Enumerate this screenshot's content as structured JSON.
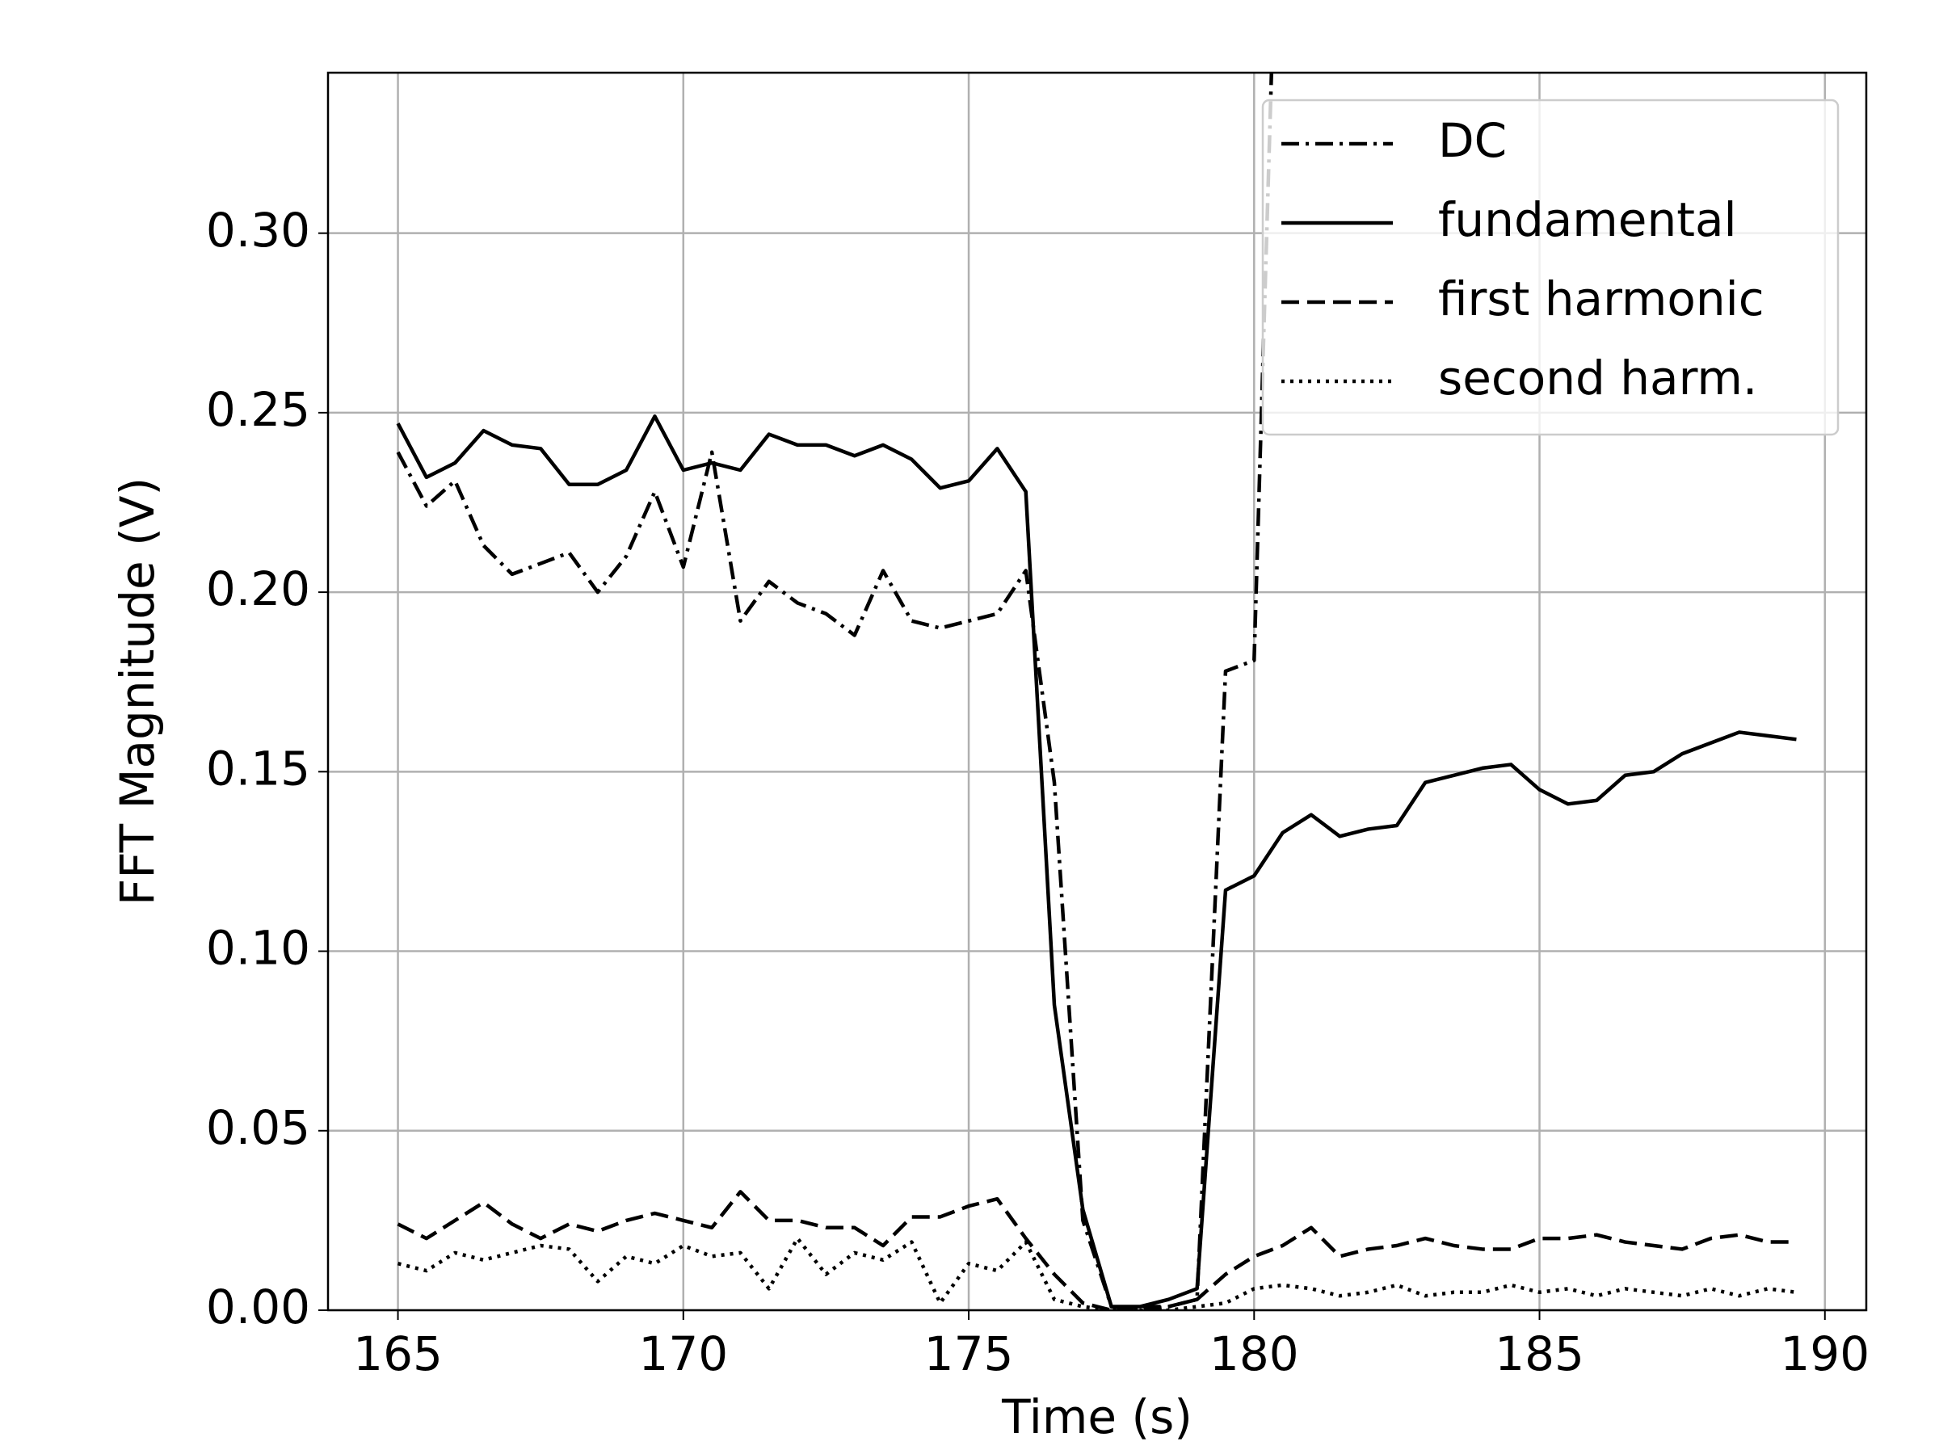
{
  "chart_data": {
    "type": "line",
    "xlabel": "Time (s)",
    "ylabel": "FFT Magnitude (V)",
    "x": [
      165,
      165.5,
      166,
      166.5,
      167,
      167.5,
      168,
      168.5,
      169,
      169.5,
      170,
      170.5,
      171,
      171.5,
      172,
      172.5,
      173,
      173.5,
      174,
      174.5,
      175,
      175.5,
      176,
      176.5,
      177,
      177.5,
      178,
      178.5,
      179,
      179.5,
      180,
      180.5,
      181,
      181.5,
      182,
      182.5,
      183,
      183.5,
      184,
      184.5,
      185,
      185.5,
      186,
      186.5,
      187,
      187.5,
      188,
      188.5,
      189,
      189.5
    ],
    "series": [
      {
        "name": "DC",
        "color": "#000000",
        "dash": "dashdot",
        "values": [
          0.239,
          0.224,
          0.231,
          0.213,
          0.205,
          0.208,
          0.211,
          0.2,
          0.21,
          0.228,
          0.207,
          0.239,
          0.192,
          0.203,
          0.197,
          0.194,
          0.188,
          0.206,
          0.192,
          0.19,
          0.192,
          0.194,
          0.206,
          0.147,
          0.025,
          0.001,
          0.0,
          0.001,
          0.003,
          0.178,
          0.181,
          0.45,
          null,
          null,
          null,
          null,
          null,
          null,
          null,
          null,
          null,
          null,
          null,
          null,
          null,
          null,
          null,
          null,
          null,
          null
        ]
      },
      {
        "name": "fundamental",
        "color": "#000000",
        "dash": "solid",
        "values": [
          0.247,
          0.232,
          0.236,
          0.245,
          0.241,
          0.24,
          0.23,
          0.23,
          0.234,
          0.249,
          0.234,
          0.236,
          0.234,
          0.244,
          0.241,
          0.241,
          0.238,
          0.241,
          0.237,
          0.229,
          0.231,
          0.24,
          0.228,
          0.085,
          0.028,
          0.001,
          0.001,
          0.003,
          0.006,
          0.117,
          0.121,
          0.133,
          0.138,
          0.132,
          0.134,
          0.135,
          0.147,
          0.149,
          0.151,
          0.152,
          0.145,
          0.141,
          0.142,
          0.149,
          0.15,
          0.155,
          0.158,
          0.161,
          0.16,
          0.159
        ]
      },
      {
        "name": "first harmonic",
        "color": "#000000",
        "dash": "dashed",
        "values": [
          0.024,
          0.02,
          0.025,
          0.03,
          0.024,
          0.02,
          0.024,
          0.022,
          0.025,
          0.027,
          0.025,
          0.023,
          0.033,
          0.025,
          0.025,
          0.023,
          0.023,
          0.018,
          0.026,
          0.026,
          0.029,
          0.031,
          0.02,
          0.01,
          0.002,
          0.0,
          0.001,
          0.001,
          0.003,
          0.01,
          0.015,
          0.018,
          0.023,
          0.015,
          0.017,
          0.018,
          0.02,
          0.018,
          0.017,
          0.017,
          0.02,
          0.02,
          0.021,
          0.019,
          0.018,
          0.017,
          0.02,
          0.021,
          0.019,
          0.019
        ]
      },
      {
        "name": "second harm.",
        "color": "#000000",
        "dash": "dotted",
        "values": [
          0.013,
          0.011,
          0.016,
          0.014,
          0.016,
          0.018,
          0.017,
          0.008,
          0.015,
          0.013,
          0.018,
          0.015,
          0.016,
          0.006,
          0.02,
          0.01,
          0.016,
          0.014,
          0.019,
          0.002,
          0.013,
          0.011,
          0.019,
          0.003,
          0.001,
          0.0,
          0.0,
          0.0,
          0.001,
          0.002,
          0.006,
          0.007,
          0.006,
          0.004,
          0.005,
          0.007,
          0.004,
          0.005,
          0.005,
          0.007,
          0.005,
          0.006,
          0.004,
          0.006,
          0.005,
          0.004,
          0.006,
          0.004,
          0.006,
          0.005
        ]
      }
    ],
    "xlim": [
      163.775,
      190.725
    ],
    "ylim": [
      0,
      0.3447
    ],
    "xticks": [
      165,
      170,
      175,
      180,
      185,
      190
    ],
    "yticks": [
      {
        "value": 0,
        "label": "0.00"
      },
      0.05,
      {
        "value": 0.1,
        "label": "0.10"
      },
      0.15,
      {
        "value": 0.2,
        "label": "0.20"
      },
      0.25,
      {
        "value": 0.3,
        "label": "0.30"
      }
    ],
    "grid": true,
    "legend": "upper right"
  }
}
